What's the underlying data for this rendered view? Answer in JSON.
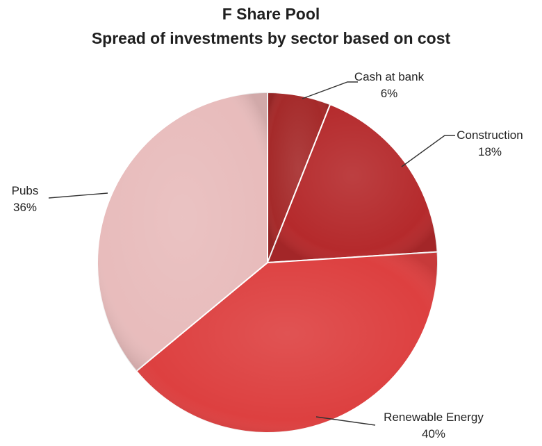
{
  "chart_data": {
    "type": "pie",
    "title": "F Share Pool",
    "subtitle": "Spread of investments by sector based on cost",
    "slices": [
      {
        "label": "Cash at bank",
        "value": 6,
        "value_label": "6%",
        "color": "#a52a2a"
      },
      {
        "label": "Construction",
        "value": 18,
        "value_label": "18%",
        "color": "#b52a2c"
      },
      {
        "label": "Renewable Energy",
        "value": 40,
        "value_label": "40%",
        "color": "#dd4040"
      },
      {
        "label": "Pubs",
        "value": 36,
        "value_label": "36%",
        "color": "#e8bcbc"
      }
    ],
    "start_angle": "top (12 o'clock), clockwise",
    "legend": "none (callout labels)"
  }
}
